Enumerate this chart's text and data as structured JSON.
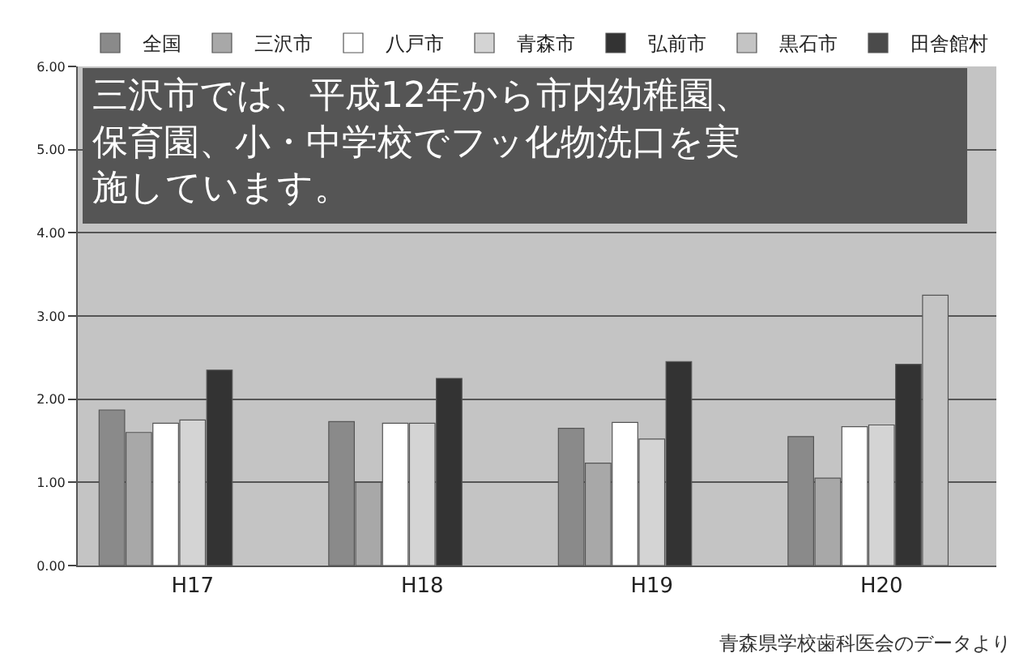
{
  "chart_data": {
    "type": "bar",
    "categories": [
      "H17",
      "H18",
      "H19",
      "H20"
    ],
    "series": [
      {
        "name": "全国",
        "color": "#8a8a8a",
        "values": [
          1.87,
          1.73,
          1.65,
          1.55
        ]
      },
      {
        "name": "三沢市",
        "color": "#a8a8a8",
        "values": [
          1.6,
          1.0,
          1.23,
          1.05
        ]
      },
      {
        "name": "八戸市",
        "color": "#ffffff",
        "values": [
          1.71,
          1.71,
          1.72,
          1.67
        ]
      },
      {
        "name": "青森市",
        "color": "#d4d4d4",
        "values": [
          1.75,
          1.71,
          1.52,
          1.69
        ]
      },
      {
        "name": "弘前市",
        "color": "#333333",
        "values": [
          2.35,
          2.25,
          2.45,
          2.42
        ]
      },
      {
        "name": "黒石市",
        "color": "#c4c4c4",
        "values": [
          null,
          null,
          null,
          3.25
        ]
      },
      {
        "name": "田舎館村",
        "color": "#4a4a4a",
        "values": [
          null,
          null,
          null,
          null
        ]
      }
    ],
    "ylim": [
      0,
      6
    ],
    "yticks": [
      {
        "value": 0,
        "label": "0.00"
      },
      {
        "value": 1,
        "label": "1.00"
      },
      {
        "value": 2,
        "label": "2.00"
      },
      {
        "value": 3,
        "label": "3.00"
      },
      {
        "value": 4,
        "label": "4.00"
      },
      {
        "value": 5,
        "label": "5.00"
      },
      {
        "value": 6,
        "label": "6.00"
      }
    ],
    "grid": "y",
    "legend": "top",
    "annotations": [
      "三沢市では、平成12年から市内幼稚園、保育園、小・中学校でフッ化物洗口を実施しています。",
      "青森県学校歯科医会のデータより"
    ]
  }
}
